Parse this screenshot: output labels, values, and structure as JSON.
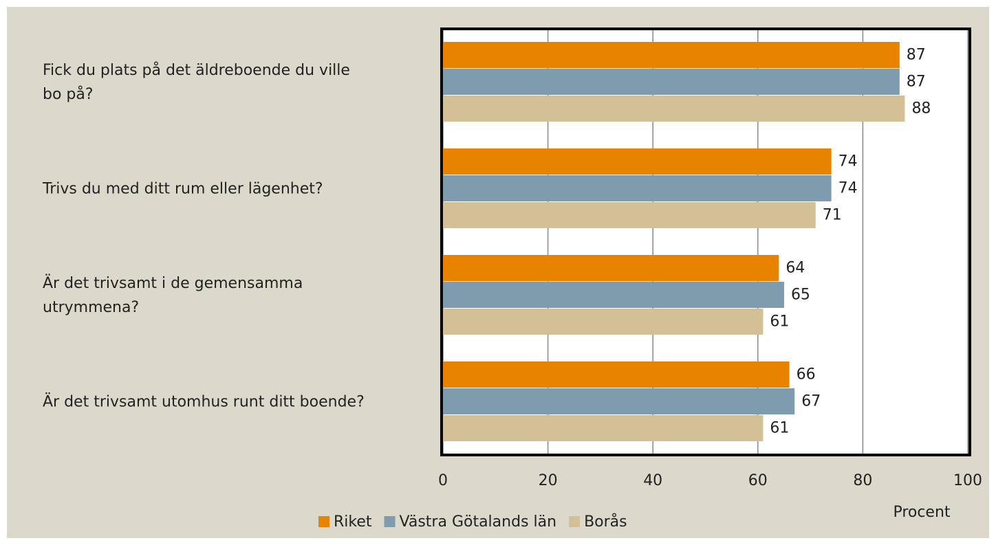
{
  "chart_data": {
    "type": "bar",
    "orientation": "horizontal",
    "categories": [
      "Fick du plats på det äldreboende du ville bo på?",
      "Trivs du med ditt rum eller lägenhet?",
      "Är det trivsamt i de gemensamma utrymmena?",
      "Är det trivsamt utomhus runt ditt boende?"
    ],
    "series": [
      {
        "name": "Riket",
        "color": "#e88300",
        "values": [
          87,
          74,
          64,
          66
        ]
      },
      {
        "name": "Västra Götalands län",
        "color": "#7f9caf",
        "values": [
          87,
          74,
          65,
          67
        ]
      },
      {
        "name": "Borås",
        "color": "#d4c097",
        "values": [
          88,
          71,
          61,
          61
        ]
      }
    ],
    "x_label": "Procent",
    "xlim": [
      0,
      100
    ],
    "xticks": [
      0,
      20,
      40,
      60,
      80,
      100
    ],
    "grid": true,
    "legend": "bottom"
  }
}
